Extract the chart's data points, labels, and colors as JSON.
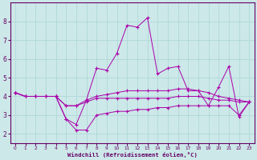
{
  "xlabel": "Windchill (Refroidissement éolien,°C)",
  "background_color": "#cce8e8",
  "line_color": "#aa00aa",
  "x": [
    0,
    1,
    2,
    3,
    4,
    5,
    6,
    7,
    8,
    9,
    10,
    11,
    12,
    13,
    14,
    15,
    16,
    17,
    18,
    19,
    20,
    21,
    22,
    23
  ],
  "line1": [
    4.2,
    4.0,
    4.0,
    4.0,
    4.0,
    2.8,
    2.5,
    3.8,
    5.5,
    5.4,
    6.3,
    7.8,
    7.7,
    8.2,
    5.2,
    5.5,
    5.6,
    4.3,
    4.3,
    3.5,
    4.5,
    5.6,
    2.9,
    3.7
  ],
  "line2": [
    4.2,
    4.0,
    4.0,
    4.0,
    4.0,
    3.5,
    3.5,
    3.8,
    4.0,
    4.1,
    4.2,
    4.3,
    4.3,
    4.3,
    4.3,
    4.3,
    4.4,
    4.4,
    4.3,
    4.2,
    4.0,
    3.9,
    3.8,
    3.7
  ],
  "line3": [
    4.2,
    4.0,
    4.0,
    4.0,
    4.0,
    3.5,
    3.5,
    3.7,
    3.9,
    3.9,
    3.9,
    3.9,
    3.9,
    3.9,
    3.9,
    3.9,
    4.0,
    4.0,
    4.0,
    3.9,
    3.8,
    3.8,
    3.7,
    3.7
  ],
  "line4": [
    4.2,
    4.0,
    4.0,
    4.0,
    4.0,
    2.8,
    2.2,
    2.2,
    3.0,
    3.1,
    3.2,
    3.2,
    3.3,
    3.3,
    3.4,
    3.4,
    3.5,
    3.5,
    3.5,
    3.5,
    3.5,
    3.5,
    3.0,
    3.7
  ],
  "ylim": [
    1.5,
    9.0
  ],
  "xlim": [
    -0.5,
    23.5
  ],
  "yticks": [
    2,
    3,
    4,
    5,
    6,
    7,
    8
  ],
  "xticks": [
    0,
    1,
    2,
    3,
    4,
    5,
    6,
    7,
    8,
    9,
    10,
    11,
    12,
    13,
    14,
    15,
    16,
    17,
    18,
    19,
    20,
    21,
    22,
    23
  ],
  "grid_color": "#b0d8d8",
  "spine_color": "#660066",
  "xlabel_color": "#660066"
}
